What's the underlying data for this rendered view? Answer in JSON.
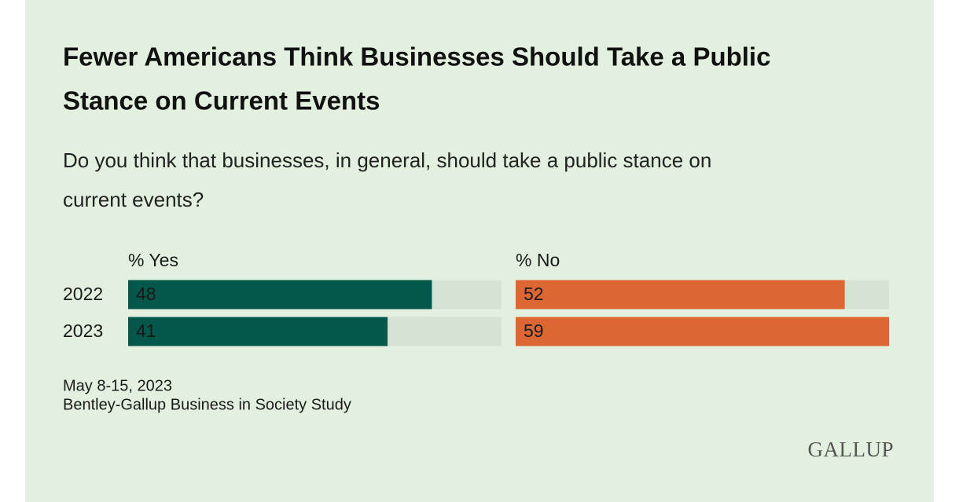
{
  "chart_data": {
    "type": "bar",
    "title": [
      "Fewer Americans Think Businesses Should Take a Public",
      "Stance on Current Events"
    ],
    "subtitle": [
      "Do you think that businesses, in general, should take a public stance on",
      "current events?"
    ],
    "categories": [
      "2022",
      "2023"
    ],
    "series": [
      {
        "name": "% Yes",
        "color": "#04574b",
        "label_color": "#ffffff",
        "values": [
          48,
          41
        ]
      },
      {
        "name": "% No",
        "color": "#dc6733",
        "label_color": "#1a1a1a",
        "values": [
          52,
          59
        ]
      }
    ],
    "xlim": [
      0,
      59
    ],
    "track_color": "#d5e4d2",
    "notes": [
      "May 8-15, 2023",
      "Bentley-Gallup Business in Society Study"
    ],
    "logo": "GALLUP"
  }
}
